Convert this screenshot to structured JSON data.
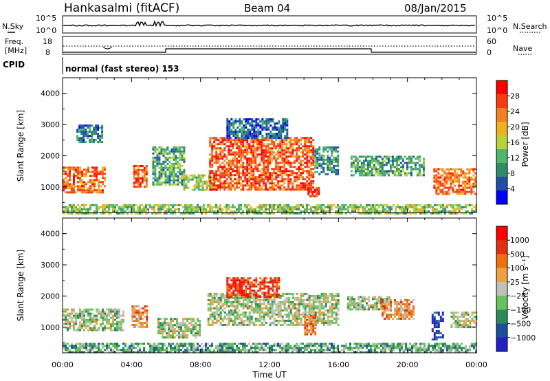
{
  "header": {
    "station": "Hankasalmi (fitACF)",
    "beam": "Beam 04",
    "date": "08/Jan/2015"
  },
  "noise_panel": {
    "left_label": "N.Sky",
    "right_label": "N.Search",
    "left_ticks": [
      "10^5",
      "10^0"
    ],
    "right_ticks": [
      "10^5",
      "10^0"
    ]
  },
  "freq_panel": {
    "left_label_1": "Freq.",
    "left_label_2": "[MHz]",
    "left_ticks": [
      "18",
      "8"
    ],
    "right_label": "Nave",
    "right_ticks": [
      "60",
      "0"
    ]
  },
  "cpid": {
    "label": "CPID",
    "value": "normal (fast stereo) 153"
  },
  "colors": {
    "power": [
      "#0000ff",
      "#1f4fa8",
      "#2e8a6a",
      "#4cb86a",
      "#b8d23a",
      "#f0b020",
      "#f08020",
      "#ff3a10",
      "#ff0000"
    ],
    "velocity": [
      "#2020c8",
      "#1e4ea0",
      "#2a8a5a",
      "#66c25a",
      "#c0c0b8",
      "#f0a040",
      "#f07010",
      "#e03010",
      "#ff0000"
    ]
  },
  "chart_data": [
    {
      "type": "heatmap",
      "name": "power",
      "xlabel": "Time UT",
      "ylabel": "Slant Range [km]",
      "xlim": [
        0,
        24
      ],
      "ylim": [
        180,
        4500
      ],
      "x_ticks": [
        "00:00",
        "04:00",
        "08:00",
        "12:00",
        "16:00",
        "20:00",
        "00:00"
      ],
      "y_ticks": [
        "1000",
        "2000",
        "3000",
        "4000"
      ],
      "colorbar_label": "Power [dB]",
      "colorbar_ticks": [
        "4",
        "8",
        "12",
        "16",
        "20",
        "24",
        "28"
      ],
      "regions": [
        {
          "t0": 0.0,
          "t1": 2.5,
          "r0": 850,
          "r1": 1650,
          "level": 0.75
        },
        {
          "t0": 0.8,
          "t1": 2.3,
          "r0": 2450,
          "r1": 3000,
          "level": 0.25
        },
        {
          "t0": 4.1,
          "t1": 4.9,
          "r0": 1000,
          "r1": 1700,
          "level": 0.8
        },
        {
          "t0": 5.2,
          "t1": 7.0,
          "r0": 1100,
          "r1": 2300,
          "level": 0.35
        },
        {
          "t0": 7.0,
          "t1": 9.0,
          "r0": 900,
          "r1": 1400,
          "level": 0.5
        },
        {
          "t0": 8.5,
          "t1": 14.5,
          "r0": 900,
          "r1": 2600,
          "level": 0.8
        },
        {
          "t0": 9.5,
          "t1": 13.0,
          "r0": 2600,
          "r1": 3200,
          "level": 0.2
        },
        {
          "t0": 14.2,
          "t1": 14.8,
          "r0": 700,
          "r1": 1000,
          "level": 0.9
        },
        {
          "t0": 14.6,
          "t1": 16.0,
          "r0": 1400,
          "r1": 2300,
          "level": 0.3
        },
        {
          "t0": 16.7,
          "t1": 21.0,
          "r0": 1350,
          "r1": 2000,
          "level": 0.35
        },
        {
          "t0": 21.5,
          "t1": 24.0,
          "r0": 800,
          "r1": 1600,
          "level": 0.75
        },
        {
          "t0": 0.0,
          "t1": 24.0,
          "r0": 180,
          "r1": 450,
          "level": 0.45
        }
      ]
    },
    {
      "type": "heatmap",
      "name": "velocity",
      "xlabel": "Time UT",
      "ylabel": "Slant Range [km]",
      "xlim": [
        0,
        24
      ],
      "ylim": [
        180,
        4500
      ],
      "x_ticks": [
        "00:00",
        "04:00",
        "08:00",
        "12:00",
        "16:00",
        "20:00",
        "00:00"
      ],
      "y_ticks": [
        "1000",
        "2000",
        "3000",
        "4000"
      ],
      "colorbar_label": "Velocity [m s⁻¹]",
      "colorbar_ticks": [
        "1000",
        "500",
        "100",
        "25",
        "−25",
        "−100",
        "−500",
        "−1000"
      ],
      "regions": [
        {
          "t0": 0.0,
          "t1": 3.5,
          "r0": 900,
          "r1": 1600,
          "level": 0.45
        },
        {
          "t0": 4.0,
          "t1": 4.9,
          "r0": 1000,
          "r1": 1700,
          "level": 0.65
        },
        {
          "t0": 5.5,
          "t1": 8.0,
          "r0": 700,
          "r1": 1300,
          "level": 0.45
        },
        {
          "t0": 8.4,
          "t1": 16.0,
          "r0": 1100,
          "r1": 2100,
          "level": 0.45
        },
        {
          "t0": 9.5,
          "t1": 12.5,
          "r0": 2000,
          "r1": 2600,
          "level": 0.85
        },
        {
          "t0": 14.0,
          "t1": 14.7,
          "r0": 800,
          "r1": 1400,
          "level": 0.7
        },
        {
          "t0": 16.5,
          "t1": 19.0,
          "r0": 1600,
          "r1": 2000,
          "level": 0.45
        },
        {
          "t0": 18.5,
          "t1": 20.3,
          "r0": 1300,
          "r1": 1900,
          "level": 0.65
        },
        {
          "t0": 21.4,
          "t1": 22.0,
          "r0": 600,
          "r1": 1500,
          "level": 0.1
        },
        {
          "t0": 22.5,
          "t1": 24.0,
          "r0": 1000,
          "r1": 1500,
          "level": 0.45
        },
        {
          "t0": 0.0,
          "t1": 24.0,
          "r0": 180,
          "r1": 500,
          "level": 0.35
        }
      ]
    }
  ]
}
